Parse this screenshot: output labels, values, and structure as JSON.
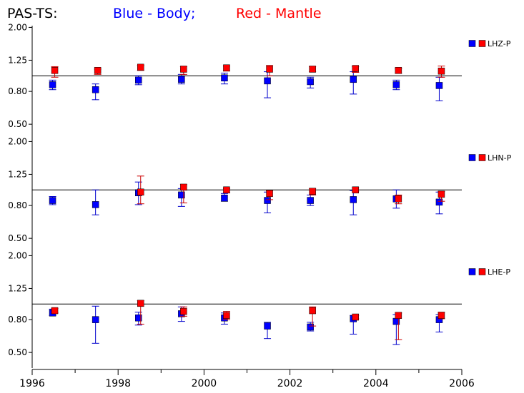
{
  "title": {
    "prefix": "PAS-TS:",
    "body_label": "Blue - Body;",
    "mantle_label": "Red - Mantle"
  },
  "colors": {
    "body": "#0000ff",
    "mantle": "#ff0000",
    "body_err": "#0000cc",
    "mantle_err": "#cc0000",
    "axis": "#000000"
  },
  "chart_data": [
    {
      "type": "scatter",
      "channel": "LHZ-P",
      "ylim": [
        0.4,
        2.05
      ],
      "y_ticks": [
        "2.00",
        "1.25",
        "0.80",
        "0.50"
      ],
      "reference_y": 1.0,
      "x": [
        1996.5,
        1997.5,
        1998.5,
        1999.5,
        2000.5,
        2001.5,
        2002.5,
        2003.5,
        2004.5,
        2005.5
      ],
      "series": [
        {
          "color": "body",
          "y": [
            0.88,
            0.82,
            0.94,
            0.95,
            0.97,
            0.93,
            0.92,
            0.95,
            0.88,
            0.87
          ],
          "err_low": [
            0.82,
            0.71,
            0.88,
            0.89,
            0.89,
            0.73,
            0.84,
            0.77,
            0.82,
            0.7
          ],
          "err_high": [
            0.94,
            0.89,
            1.0,
            1.02,
            1.04,
            1.06,
            0.98,
            1.06,
            0.94,
            0.98
          ]
        },
        {
          "color": "mantle",
          "y": [
            1.08,
            1.08,
            1.13,
            1.1,
            1.12,
            1.1,
            1.1,
            1.11,
            1.08,
            1.07
          ],
          "err_low": [
            0.98,
            1.02,
            1.08,
            1.02,
            1.07,
            1.0,
            1.06,
            1.05,
            1.04,
            0.98
          ],
          "err_high": [
            1.14,
            1.1,
            1.16,
            1.14,
            1.15,
            1.16,
            1.14,
            1.14,
            1.11,
            1.15
          ]
        }
      ]
    },
    {
      "type": "scatter",
      "channel": "LHN-P",
      "ylim": [
        0.4,
        2.05
      ],
      "y_ticks": [
        "2.00",
        "1.25",
        "0.80",
        "0.50"
      ],
      "reference_y": 1.0,
      "x": [
        1996.5,
        1997.5,
        1998.5,
        1999.5,
        2000.5,
        2001.5,
        2002.5,
        2003.5,
        2004.5,
        2005.5
      ],
      "series": [
        {
          "color": "body",
          "y": [
            0.86,
            0.81,
            0.96,
            0.93,
            0.89,
            0.86,
            0.86,
            0.87,
            0.88,
            0.84
          ],
          "err_low": [
            0.81,
            0.7,
            0.81,
            0.79,
            0.85,
            0.72,
            0.8,
            0.7,
            0.77,
            0.71
          ],
          "err_high": [
            0.91,
            1.0,
            1.12,
            1.02,
            0.95,
            0.97,
            0.93,
            0.99,
            1.0,
            0.97
          ]
        },
        {
          "color": "mantle",
          "y": [
            null,
            null,
            0.97,
            1.04,
            1.0,
            0.95,
            0.98,
            1.0,
            0.88,
            0.94
          ],
          "err_low": [
            null,
            null,
            0.82,
            0.83,
            0.96,
            0.87,
            0.93,
            0.98,
            0.82,
            0.85
          ],
          "err_high": [
            null,
            null,
            1.22,
            1.08,
            1.02,
            0.99,
            1.02,
            1.03,
            0.93,
            0.98
          ]
        }
      ]
    },
    {
      "type": "scatter",
      "channel": "LHE-P",
      "ylim": [
        0.4,
        2.05
      ],
      "y_ticks": [
        "2.00",
        "1.25",
        "0.80",
        "0.50"
      ],
      "reference_y": 1.0,
      "x": [
        1996.5,
        1997.5,
        1998.5,
        1999.5,
        2000.5,
        2001.5,
        2002.5,
        2003.5,
        2004.5,
        2005.5
      ],
      "series": [
        {
          "color": "body",
          "y": [
            0.88,
            0.8,
            0.82,
            0.87,
            0.82,
            0.73,
            0.72,
            0.81,
            0.78,
            0.8
          ],
          "err_low": [
            0.85,
            0.57,
            0.74,
            0.78,
            0.75,
            0.61,
            0.68,
            0.65,
            0.56,
            0.67
          ],
          "err_high": [
            0.93,
            0.97,
            0.89,
            0.96,
            0.88,
            0.77,
            0.77,
            0.85,
            0.86,
            0.86
          ]
        },
        {
          "color": "mantle",
          "y": [
            0.91,
            null,
            1.01,
            0.9,
            0.85,
            null,
            0.91,
            0.83,
            0.85,
            0.85
          ],
          "err_low": [
            0.88,
            null,
            0.75,
            0.84,
            0.8,
            null,
            0.73,
            0.81,
            0.6,
            0.81
          ],
          "err_high": [
            0.94,
            null,
            1.05,
            0.96,
            0.9,
            null,
            0.96,
            0.85,
            0.88,
            0.89
          ]
        }
      ]
    }
  ],
  "x_axis": {
    "range": [
      1996,
      2006
    ],
    "tick_labels": [
      "1996",
      "1998",
      "2000",
      "2002",
      "2004",
      "2006"
    ],
    "tick_values": [
      1996,
      1998,
      2000,
      2002,
      2004,
      2006
    ],
    "minor_ticks": [
      1997,
      1999,
      2001,
      2003,
      2005
    ]
  }
}
